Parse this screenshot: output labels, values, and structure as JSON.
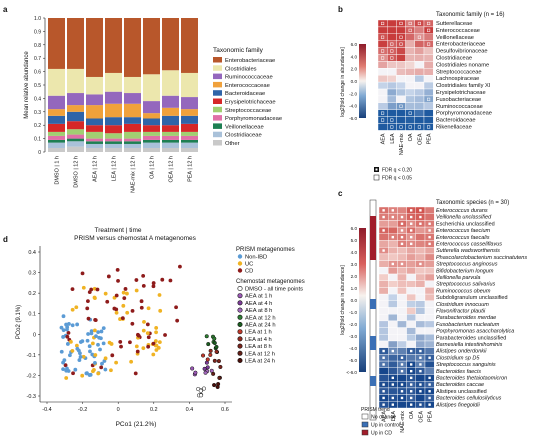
{
  "panels": {
    "a": {
      "letter": "a",
      "ylabel": "Mean relative abundance",
      "xlabel": "Treatment | time",
      "legend_title": "Taxonomic family",
      "families": [
        {
          "name": "Enterobacteriaceae",
          "color": "#b8572b"
        },
        {
          "name": "Clostridiales",
          "color": "#ece7ad"
        },
        {
          "name": "Ruminococcaceae",
          "color": "#9467bd"
        },
        {
          "name": "Enterococcaceae",
          "color": "#f0a13b"
        },
        {
          "name": "Bacteroidaceae",
          "color": "#2f64a8"
        },
        {
          "name": "Erysipelotrichaceae",
          "color": "#d62728"
        },
        {
          "name": "Streptococcaceae",
          "color": "#a1cf72"
        },
        {
          "name": "Porphyromonadaceae",
          "color": "#e06fa7"
        },
        {
          "name": "Veillonellaceae",
          "color": "#1e7f53"
        },
        {
          "name": "Clostridiaceae",
          "color": "#a9c1d9"
        },
        {
          "name": "Other",
          "color": "#c9c9c9"
        }
      ]
    },
    "b": {
      "letter": "b",
      "title": "Taxonomic family (n = 16)",
      "ylabel": "log2[fold change in abundance]",
      "rows": [
        "Sutterellaceae",
        "Enterococcaceae",
        "Veillonellaceae",
        "Enterobacteriaceae",
        "Desulfovibrionaceae",
        "Clostridiaceae",
        "Clostridiales noname",
        "Streptococcaceae",
        "Lachnospiraceae",
        "Clostridiales family XI",
        "Erysipelotrichaceae",
        "Fusobacteriaceae",
        "Ruminococcaceae",
        "Porphyromonadaceae",
        "Bacteroidaceae",
        "Rikenellaceae"
      ],
      "cols": [
        "AEA",
        "LEA",
        "NAE-mix",
        "OA",
        "OEA",
        "PEA"
      ],
      "scale_ticks": [
        "6.0",
        "4.0",
        "2.0",
        "0.0",
        "-2.0",
        "-4.0",
        "-6.0"
      ],
      "fdr_labels": [
        "FDR q < 0.20",
        "FDR q < 0.05"
      ]
    },
    "c": {
      "letter": "c",
      "title": "Taxonomic species (n = 30)",
      "ylabel": "log2[fold change in abundance]",
      "rows": [
        "Enterococcus durans",
        "Veillonella unclassified",
        "Escherichia unclassified",
        "Enterococcus faecium",
        "Enterococcus faecalis",
        "Enterococcus casseliflavus",
        "Sutterella wadsworthensis",
        "Phascolarctobacterium succinatutens",
        "Streptococcus anginosus",
        "Bifidobacterium longum",
        "Veillonella parvula",
        "Streptococcus salivarius",
        "Ruminococcus obeum",
        "Subdoligranulum unclassified",
        "Clostridium innocuum",
        "Flavonifractor plautii",
        "Parabacteroides merdae",
        "Fusobacterium nucleatum",
        "Porphyromonas asaccharolytica",
        "Parabacteroides unclassified",
        "Barnesiella intestinihominis",
        "Alistipes onderdonkii",
        "Clostridium sp D5",
        "Streptococcus sanguinis",
        "Bacteroides faecis",
        "Bacteroides thetaiotaomicron",
        "Bacteroides caccae",
        "Alistipes unclassified",
        "Bacteroides cellulosilyticus",
        "Alistipes finegoldii"
      ],
      "italic_rows": [
        0,
        1,
        3,
        4,
        5,
        6,
        7,
        8,
        9,
        10,
        11,
        12,
        14,
        15,
        16,
        17,
        18,
        20,
        21,
        22,
        23,
        24,
        25,
        26,
        28,
        29
      ],
      "cols": [
        "AEA",
        "LEA",
        "NAE-mix",
        "OA",
        "OEA",
        "PEA"
      ],
      "scale_ticks": [
        "6.0",
        "5.0",
        "4.0",
        "3.0",
        "2.0",
        "1.0",
        "0.0",
        "-1.0",
        "-2.0",
        "-3.0",
        "-4.0",
        "-5.0",
        "<-6.0"
      ],
      "trend_title": "PRISM trend",
      "trend": [
        {
          "label": "No change",
          "color": "#ffffff"
        },
        {
          "label": "Up in control",
          "color": "#3a6fb5"
        },
        {
          "label": "Up in CD",
          "color": "#a11d2b"
        }
      ]
    },
    "d": {
      "letter": "d",
      "title": "PRISM versus chemostat A metagenomes",
      "xlabel": "PCo1 (21.2%)",
      "ylabel": "PCo2 (9.1%)",
      "xticks": [
        "-0.4",
        "-0.2",
        "0",
        "0.2",
        "0.4",
        "0.6"
      ],
      "yticks": [
        "0.4",
        "0.3",
        "0.2",
        "0.1",
        "0",
        "-0.1",
        "-0.2",
        "-0.3"
      ],
      "legend1_title": "PRISM metagenomes",
      "legend1": [
        {
          "label": "Non-IBD",
          "color": "#5b9bd5"
        },
        {
          "label": "UC",
          "color": "#f0b323"
        },
        {
          "label": "CD",
          "color": "#8e1b1b"
        }
      ],
      "legend2_title": "Chemostat metagenomes",
      "legend2": [
        {
          "label": "DMSO - all time points",
          "color": "#ffffff"
        },
        {
          "label": "AEA at 1 h",
          "color": "#9b59b6"
        },
        {
          "label": "AEA at 4 h",
          "color": "#7d3c98"
        },
        {
          "label": "AEA at 8 h",
          "color": "#a569bd"
        },
        {
          "label": "AEA at 12 h",
          "color": "#2e7d32"
        },
        {
          "label": "AEA at 24 h",
          "color": "#1b5e20"
        },
        {
          "label": "LEA at 1 h",
          "color": "#c0392b"
        },
        {
          "label": "LEA at 4 h",
          "color": "#922b21"
        },
        {
          "label": "LEA at 8 h",
          "color": "#7b241c"
        },
        {
          "label": "LEA at 12 h",
          "color": "#641e16"
        },
        {
          "label": "LEA at 24 h",
          "color": "#4a0f0a"
        }
      ]
    }
  },
  "chart_data": [
    {
      "type": "bar",
      "stacked": true,
      "categories": [
        "DMSO | 1 h",
        "DMSO | 12 h",
        "AEA | 12 h",
        "LEA | 12 h",
        "NAE-mix | 12 h",
        "OA | 12 h",
        "OEA | 12 h",
        "PEA | 12 h"
      ],
      "ylim": [
        0,
        1.0
      ],
      "yticks": [
        "0",
        "0.1",
        "0.2",
        "0.3",
        "0.4",
        "0.5",
        "0.6",
        "0.7",
        "0.8",
        "0.9",
        "1.0"
      ],
      "series": [
        {
          "name": "Other",
          "values": [
            0.03,
            0.04,
            0.03,
            0.03,
            0.03,
            0.03,
            0.03,
            0.03
          ]
        },
        {
          "name": "Clostridiaceae",
          "values": [
            0.04,
            0.04,
            0.03,
            0.03,
            0.03,
            0.04,
            0.04,
            0.04
          ]
        },
        {
          "name": "Veillonellaceae",
          "values": [
            0.02,
            0.02,
            0.02,
            0.02,
            0.02,
            0.02,
            0.02,
            0.02
          ]
        },
        {
          "name": "Porphyromonadaceae",
          "values": [
            0.03,
            0.03,
            0.02,
            0.02,
            0.02,
            0.03,
            0.03,
            0.03
          ]
        },
        {
          "name": "Streptococcaceae",
          "values": [
            0.03,
            0.04,
            0.05,
            0.04,
            0.05,
            0.03,
            0.03,
            0.03
          ]
        },
        {
          "name": "Erysipelotrichaceae",
          "values": [
            0.06,
            0.06,
            0.05,
            0.06,
            0.06,
            0.05,
            0.05,
            0.06
          ]
        },
        {
          "name": "Bacteroidaceae",
          "values": [
            0.06,
            0.07,
            0.05,
            0.06,
            0.05,
            0.05,
            0.07,
            0.06
          ]
        },
        {
          "name": "Enterococcaceae",
          "values": [
            0.05,
            0.05,
            0.1,
            0.1,
            0.1,
            0.04,
            0.06,
            0.05
          ]
        },
        {
          "name": "Ruminococcaceae",
          "values": [
            0.1,
            0.09,
            0.08,
            0.09,
            0.08,
            0.09,
            0.09,
            0.09
          ]
        },
        {
          "name": "Clostridiales",
          "values": [
            0.2,
            0.18,
            0.13,
            0.14,
            0.12,
            0.2,
            0.19,
            0.18
          ]
        },
        {
          "name": "Enterobacteriaceae",
          "values": [
            0.38,
            0.38,
            0.44,
            0.41,
            0.44,
            0.42,
            0.39,
            0.41
          ]
        }
      ]
    }
  ]
}
